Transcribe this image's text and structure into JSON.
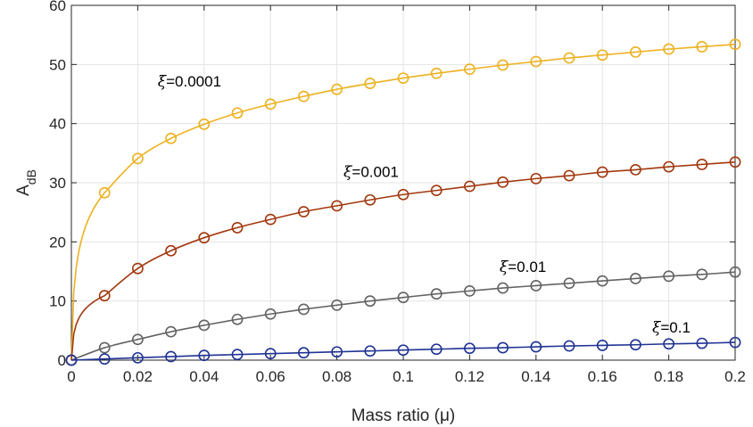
{
  "chart_data": {
    "type": "line",
    "title": "",
    "xlabel": "Mass ratio (μ)",
    "ylabel": "A",
    "ylabel_sub": "dB",
    "xlim": [
      0,
      0.2
    ],
    "ylim": [
      0,
      60
    ],
    "xticks": [
      0,
      0.02,
      0.04,
      0.06,
      0.08,
      0.1,
      0.12,
      0.14,
      0.16,
      0.18,
      0.2
    ],
    "xtick_labels": [
      "0",
      "0.02",
      "0.04",
      "0.06",
      "0.08",
      "0.1",
      "0.12",
      "0.14",
      "0.16",
      "0.18",
      "0.2"
    ],
    "yticks": [
      0,
      10,
      20,
      30,
      40,
      50,
      60
    ],
    "ytick_labels": [
      "0",
      "10",
      "20",
      "30",
      "40",
      "50",
      "60"
    ],
    "grid": true,
    "marker": "circle",
    "x": [
      0,
      0.01,
      0.02,
      0.03,
      0.04,
      0.05,
      0.06,
      0.07,
      0.08,
      0.09,
      0.1,
      0.11,
      0.12,
      0.13,
      0.14,
      0.15,
      0.16,
      0.17,
      0.18,
      0.19,
      0.2
    ],
    "series": [
      {
        "color": "#EDB120",
        "label": "=0.0001",
        "label_at": [
          0.026,
          46.3
        ],
        "values": [
          0,
          28.3,
          34.1,
          37.5,
          39.9,
          41.8,
          43.3,
          44.6,
          45.8,
          46.8,
          47.7,
          48.5,
          49.2,
          49.9,
          50.5,
          51.1,
          51.6,
          52.1,
          52.6,
          53.0,
          53.4
        ]
      },
      {
        "color": "#A2380E",
        "label": "=0.001",
        "label_at": [
          0.082,
          31.0
        ],
        "values": [
          0,
          10.9,
          15.5,
          18.5,
          20.7,
          22.4,
          23.8,
          25.1,
          26.1,
          27.1,
          28.0,
          28.7,
          29.4,
          30.1,
          30.7,
          31.2,
          31.8,
          32.2,
          32.7,
          33.1,
          33.5
        ]
      },
      {
        "color": "#636363",
        "label": "=0.01",
        "label_at": [
          0.129,
          14.9
        ],
        "values": [
          0,
          2.1,
          3.5,
          4.8,
          5.9,
          6.9,
          7.8,
          8.6,
          9.3,
          10.0,
          10.6,
          11.2,
          11.7,
          12.2,
          12.6,
          13.0,
          13.4,
          13.8,
          14.2,
          14.5,
          14.9
        ]
      },
      {
        "color": "#1F3394",
        "label": "=0.1",
        "label_at": [
          0.175,
          4.7
        ],
        "values": [
          0,
          0.2,
          0.4,
          0.6,
          0.8,
          0.95,
          1.1,
          1.25,
          1.4,
          1.55,
          1.7,
          1.85,
          2.0,
          2.1,
          2.25,
          2.4,
          2.5,
          2.6,
          2.75,
          2.85,
          3.0
        ]
      }
    ]
  }
}
